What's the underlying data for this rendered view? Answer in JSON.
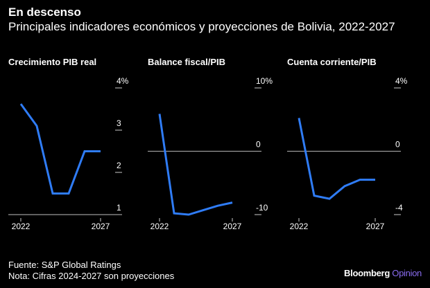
{
  "title": "En descenso",
  "subtitle": "Principales indicadores económicos y proyecciones de Bolivia, 2022-2027",
  "source": "Fuente: S&P Global Ratings",
  "note": "Nota: Cifras 2024-2027 son proyecciones",
  "brand": {
    "name": "Bloomberg",
    "suffix": "Opinion"
  },
  "colors": {
    "line": "#2f7cf6",
    "axis": "#9a9a9a",
    "accent": "#8a6cf0"
  },
  "chart_data": [
    {
      "type": "line",
      "title": "Crecimiento PIB real",
      "x": [
        2022,
        2023,
        2024,
        2025,
        2026,
        2027
      ],
      "values": [
        3.62,
        3.1,
        1.5,
        1.5,
        2.5,
        2.5
      ],
      "ylim": [
        1,
        4
      ],
      "yticks": [
        1,
        2,
        3,
        4
      ],
      "ytick_labels": [
        "1",
        "2",
        "3",
        "4%"
      ],
      "xtick_labels": [
        "2022",
        "2027"
      ],
      "zero_line": false
    },
    {
      "type": "line",
      "title": "Balance fiscal/PIB",
      "x": [
        2022,
        2023,
        2024,
        2025,
        2026,
        2027
      ],
      "values": [
        5.9,
        -9.8,
        -10.0,
        -9.3,
        -8.6,
        -8.1
      ],
      "ylim": [
        -10,
        10
      ],
      "yticks": [
        -10,
        0,
        10
      ],
      "ytick_labels": [
        "-10",
        "0",
        "10%"
      ],
      "xtick_labels": [
        "2022",
        "2027"
      ],
      "zero_line": true
    },
    {
      "type": "line",
      "title": "Cuenta corriente/PIB",
      "x": [
        2022,
        2023,
        2024,
        2025,
        2026,
        2027
      ],
      "values": [
        2.1,
        -2.8,
        -3.0,
        -2.2,
        -1.8,
        -1.8
      ],
      "ylim": [
        -4,
        4
      ],
      "yticks": [
        -4,
        0,
        4
      ],
      "ytick_labels": [
        "-4",
        "0",
        "4%"
      ],
      "xtick_labels": [
        "2022",
        "2027"
      ],
      "zero_line": true
    }
  ]
}
